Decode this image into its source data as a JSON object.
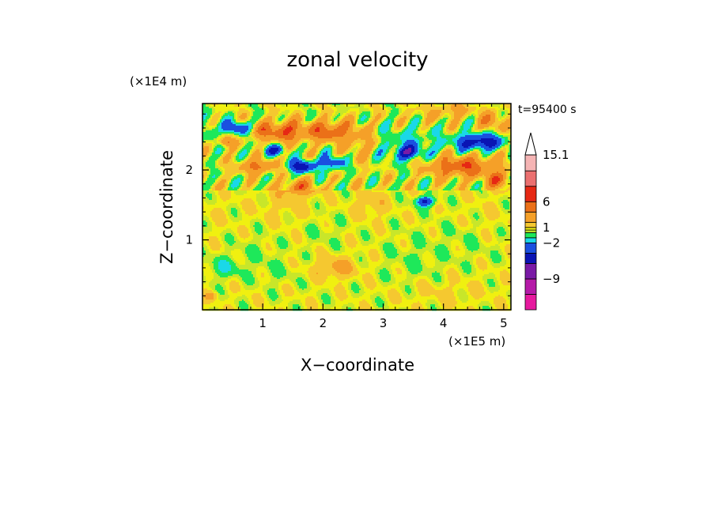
{
  "chart_data": {
    "type": "heatmap",
    "title": "zonal velocity",
    "xlabel": "X−coordinate",
    "ylabel": "Z−coordinate",
    "x_units": "(×1E5 m)",
    "y_units": "(×1E4 m)",
    "time_label": "t=95400 s",
    "xlim": [
      0,
      5.12
    ],
    "ylim": [
      0,
      2.95
    ],
    "x_ticks": [
      1,
      2,
      3,
      4,
      5
    ],
    "x_tick_labels": [
      "1",
      "2",
      "3",
      "4",
      "5"
    ],
    "y_ticks": [
      1,
      2
    ],
    "y_tick_labels": [
      "1",
      "2"
    ],
    "colorbar": {
      "labeled_levels": [
        {
          "label": "15.1",
          "level": 15.1
        },
        {
          "label": "6",
          "level": 6
        },
        {
          "label": "1",
          "level": 1
        },
        {
          "label": "−2",
          "level": -2
        },
        {
          "label": "−9",
          "level": -9
        }
      ],
      "bands": [
        {
          "color": "#e6199e",
          "from": -15,
          "to": -12
        },
        {
          "color": "#b51aa8",
          "from": -12,
          "to": -9
        },
        {
          "color": "#7a1aa6",
          "from": -9,
          "to": -6
        },
        {
          "color": "#0a14b4",
          "from": -6,
          "to": -4
        },
        {
          "color": "#1a50e0",
          "from": -4,
          "to": -2
        },
        {
          "color": "#1ad8e8",
          "from": -2,
          "to": -1
        },
        {
          "color": "#1ee85a",
          "from": -1,
          "to": 0
        },
        {
          "color": "#c8e62a",
          "from": 0,
          "to": 0.5
        },
        {
          "color": "#f0f010",
          "from": 0.5,
          "to": 1
        },
        {
          "color": "#f5c830",
          "from": 1,
          "to": 2
        },
        {
          "color": "#f5a028",
          "from": 2,
          "to": 4
        },
        {
          "color": "#eb7018",
          "from": 4,
          "to": 6
        },
        {
          "color": "#e62814",
          "from": 6,
          "to": 9
        },
        {
          "color": "#eb7070",
          "from": 9,
          "to": 12
        },
        {
          "color": "#f5b4b4",
          "from": 12,
          "to": 15.1
        }
      ],
      "overflow_color": "#ffffff"
    },
    "features": [
      {
        "x": 0.55,
        "z": 2.6,
        "u": -5,
        "rx": 0.2,
        "rz": 0.09
      },
      {
        "x": 1.0,
        "z": 2.55,
        "u": 3,
        "rx": 0.2,
        "rz": 0.12
      },
      {
        "x": 1.4,
        "z": 2.55,
        "u": 5,
        "rx": 0.3,
        "rz": 0.15
      },
      {
        "x": 2.1,
        "z": 2.55,
        "u": 5,
        "rx": 0.35,
        "rz": 0.14
      },
      {
        "x": 1.2,
        "z": 2.28,
        "u": -4,
        "rx": 0.2,
        "rz": 0.08
      },
      {
        "x": 1.65,
        "z": 2.05,
        "u": -6,
        "rx": 0.22,
        "rz": 0.09
      },
      {
        "x": 2.15,
        "z": 2.1,
        "u": -4,
        "rx": 0.22,
        "rz": 0.1
      },
      {
        "x": 0.4,
        "z": 2.4,
        "u": 4,
        "rx": 0.12,
        "rz": 0.07
      },
      {
        "x": 0.9,
        "z": 2.05,
        "u": 4,
        "rx": 0.3,
        "rz": 0.1
      },
      {
        "x": 1.6,
        "z": 1.75,
        "u": 4,
        "rx": 0.25,
        "rz": 0.1
      },
      {
        "x": 2.6,
        "z": 2.4,
        "u": 2,
        "rx": 0.25,
        "rz": 0.25
      },
      {
        "x": 3.45,
        "z": 2.35,
        "u": -2,
        "rx": 0.5,
        "rz": 0.3
      },
      {
        "x": 3.4,
        "z": 2.25,
        "u": -4,
        "rx": 0.22,
        "rz": 0.09
      },
      {
        "x": 3.65,
        "z": 2.75,
        "u": 0.8,
        "rx": 0.4,
        "rz": 0.15
      },
      {
        "x": 4.15,
        "z": 2.85,
        "u": 2,
        "rx": 0.3,
        "rz": 0.1
      },
      {
        "x": 4.6,
        "z": 2.4,
        "u": -6,
        "rx": 0.4,
        "rz": 0.12
      },
      {
        "x": 4.3,
        "z": 2.05,
        "u": 5,
        "rx": 0.6,
        "rz": 0.15
      },
      {
        "x": 3.7,
        "z": 1.55,
        "u": -5,
        "rx": 0.15,
        "rz": 0.07
      },
      {
        "x": 4.9,
        "z": 1.85,
        "u": 4,
        "rx": 0.2,
        "rz": 0.12
      },
      {
        "x": 4.8,
        "z": 2.7,
        "u": 3,
        "rx": 0.2,
        "rz": 0.15
      },
      {
        "x": 0.1,
        "z": 2.6,
        "u": -2,
        "rx": 0.12,
        "rz": 0.2
      },
      {
        "x": 0.2,
        "z": 1.4,
        "u": 0.3,
        "rx": 0.3,
        "rz": 0.3
      },
      {
        "x": 0.35,
        "z": 0.6,
        "u": -1.5,
        "rx": 0.3,
        "rz": 0.15
      },
      {
        "x": 0.9,
        "z": 0.85,
        "u": -0.5,
        "rx": 0.35,
        "rz": 0.2
      },
      {
        "x": 1.2,
        "z": 0.55,
        "u": -0.6,
        "rx": 0.35,
        "rz": 0.18
      },
      {
        "x": 2.2,
        "z": 0.6,
        "u": 2,
        "rx": 0.35,
        "rz": 0.15
      },
      {
        "x": 2.0,
        "z": 1.15,
        "u": -0.5,
        "rx": 0.3,
        "rz": 0.25
      },
      {
        "x": 3.5,
        "z": 0.7,
        "u": -0.6,
        "rx": 0.5,
        "rz": 0.35
      },
      {
        "x": 4.4,
        "z": 1.0,
        "u": -0.5,
        "rx": 0.5,
        "rz": 0.3
      },
      {
        "x": 4.0,
        "z": 0.25,
        "u": 0.6,
        "rx": 0.7,
        "rz": 0.2
      },
      {
        "x": 2.8,
        "z": 1.5,
        "u": 1.2,
        "rx": 0.25,
        "rz": 0.2
      },
      {
        "x": 4.7,
        "z": 1.3,
        "u": 0.4,
        "rx": 0.35,
        "rz": 0.3
      },
      {
        "x": 1.4,
        "z": 1.5,
        "u": 0.7,
        "rx": 0.5,
        "rz": 0.25
      },
      {
        "x": 0.15,
        "z": 0.2,
        "u": 2,
        "rx": 0.1,
        "rz": 0.06
      }
    ]
  }
}
